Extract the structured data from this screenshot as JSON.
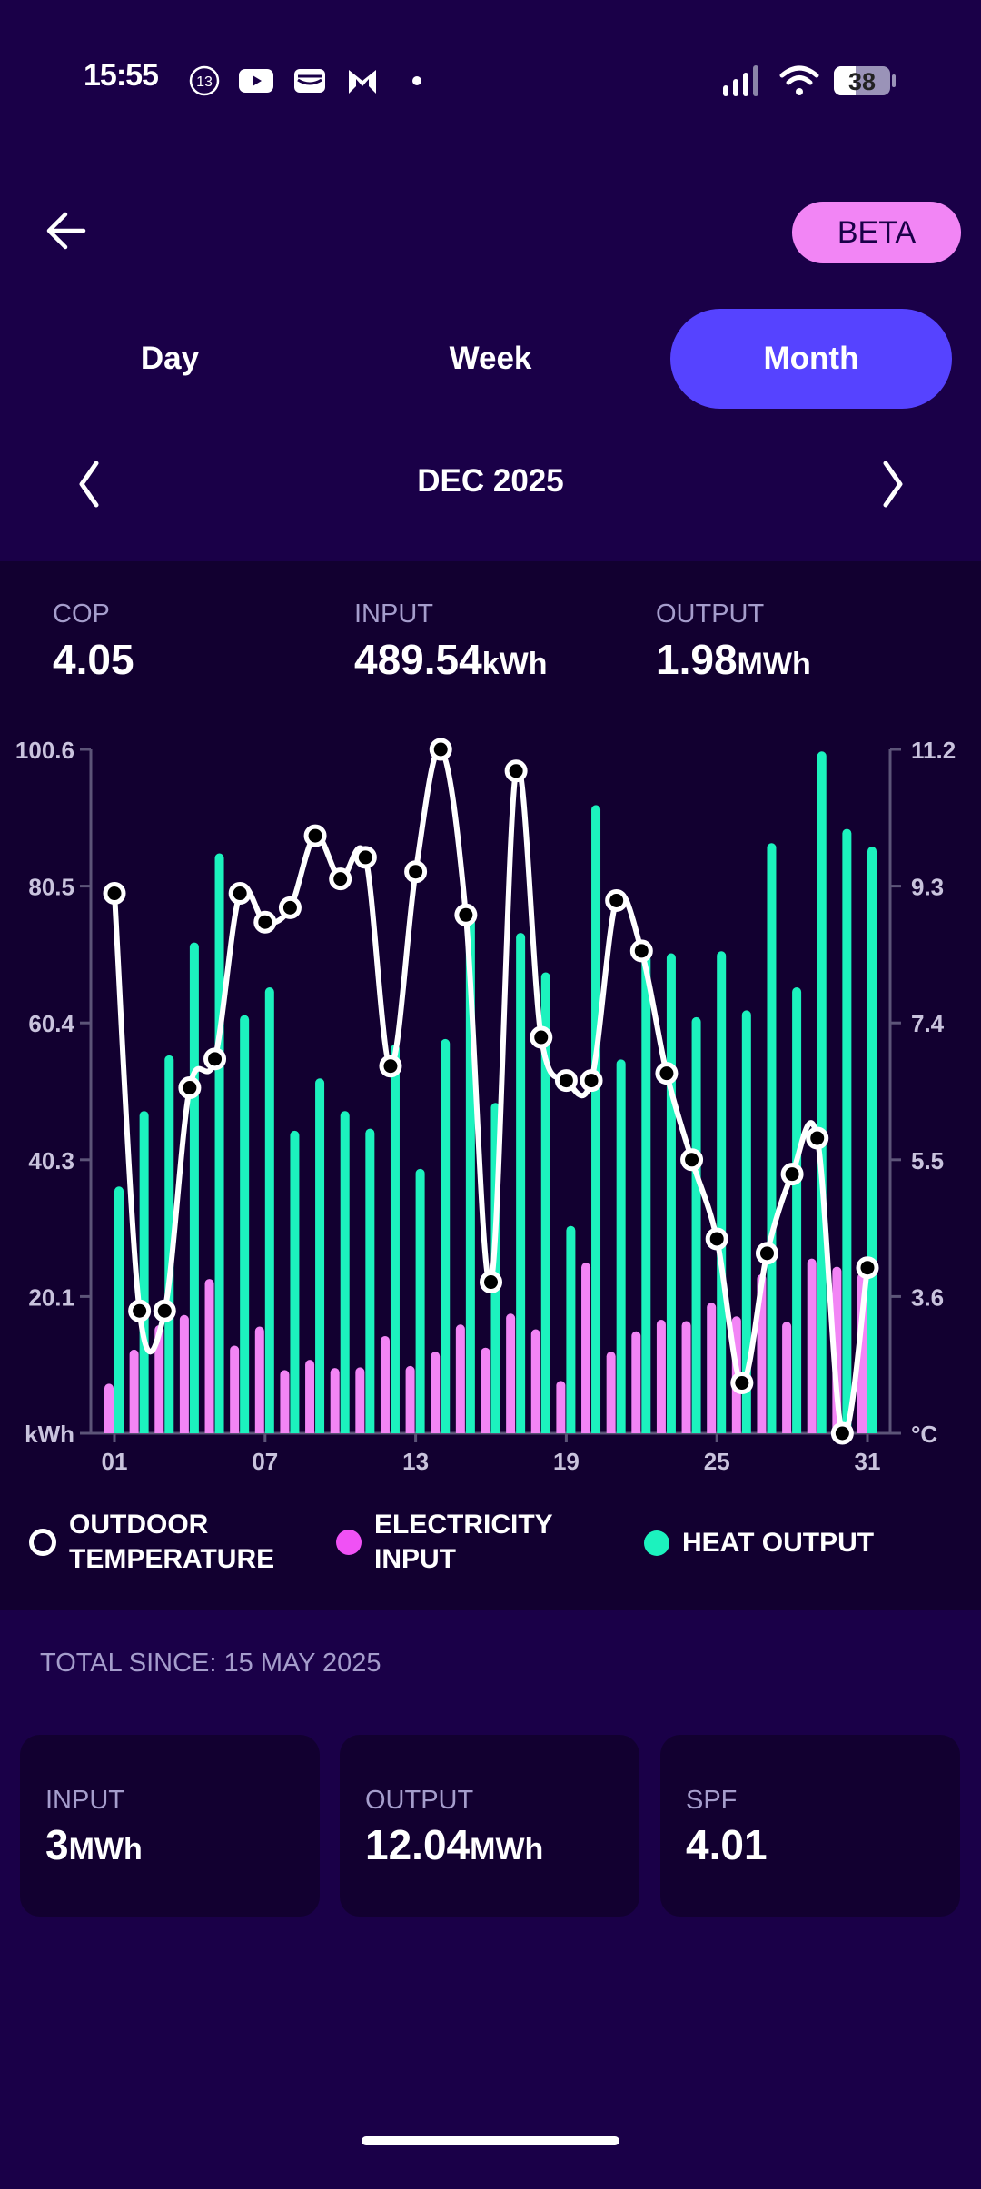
{
  "status_bar": {
    "time": "15:55",
    "notification_badge": "13",
    "battery": "38",
    "icons": [
      "notification-count-icon",
      "youtube-icon",
      "wallet-icon",
      "m-app-icon",
      "more-dot-icon",
      "signal-icon",
      "wifi-icon",
      "battery-icon"
    ]
  },
  "header": {
    "back_icon": "arrow-left-icon",
    "beta_label": "BETA"
  },
  "tabs": [
    {
      "label": "Day",
      "active": false
    },
    {
      "label": "Week",
      "active": false
    },
    {
      "label": "Month",
      "active": true
    }
  ],
  "period": {
    "label": "DEC 2025",
    "prev_icon": "chevron-left-icon",
    "next_icon": "chevron-right-icon"
  },
  "summary": {
    "cop": {
      "label": "COP",
      "value": "4.05",
      "unit": ""
    },
    "input": {
      "label": "INPUT",
      "value": "489.54",
      "unit": "kWh"
    },
    "output": {
      "label": "OUTPUT",
      "value": "1.98",
      "unit": "MWh"
    }
  },
  "colors": {
    "background": "#1a0048",
    "panel": "#120030",
    "accent": "#5643ff",
    "beta": "#f285f5",
    "electricity": "#f285f5",
    "heat": "#1cf2be",
    "temperature": "#ffffff"
  },
  "chart_data": {
    "type": "bar",
    "categories": [
      "01",
      "02",
      "03",
      "04",
      "05",
      "06",
      "07",
      "08",
      "09",
      "10",
      "11",
      "12",
      "13",
      "14",
      "15",
      "16",
      "17",
      "18",
      "19",
      "20",
      "21",
      "22",
      "23",
      "24",
      "25",
      "26",
      "27",
      "28",
      "29",
      "30",
      "31"
    ],
    "x_tick_labels": [
      "01",
      "07",
      "13",
      "19",
      "25",
      "31"
    ],
    "left_axis": {
      "unit_label": "kWh",
      "ylim": [
        0,
        100.6
      ],
      "ticks": [
        "100.6",
        "80.5",
        "60.4",
        "40.3",
        "20.1"
      ]
    },
    "right_axis": {
      "unit_label": "°C",
      "ylim": [
        1.7,
        11.2
      ],
      "ticks": [
        "11.2",
        "9.3",
        "7.4",
        "5.5",
        "3.6"
      ]
    },
    "grid": false,
    "legend_position": "bottom",
    "series": [
      {
        "name": "HEAT OUTPUT",
        "type": "bar",
        "axis": "left",
        "color": "#1cf2be",
        "values": [
          36.3,
          47.4,
          55.6,
          72.2,
          85.3,
          61.5,
          65.6,
          44.5,
          52.2,
          47.4,
          44.8,
          57.2,
          38.9,
          58.0,
          75.8,
          48.6,
          73.6,
          67.8,
          30.5,
          92.4,
          55.0,
          70.4,
          70.6,
          61.2,
          70.9,
          62.2,
          86.8,
          65.6,
          100.3,
          88.9,
          86.3
        ]
      },
      {
        "name": "ELECTRICITY INPUT",
        "type": "bar",
        "axis": "left",
        "color": "#f285f5",
        "values": [
          7.3,
          12.3,
          15.9,
          17.4,
          22.7,
          12.9,
          15.7,
          9.3,
          10.8,
          9.6,
          9.7,
          14.3,
          9.9,
          12.0,
          16.0,
          12.6,
          17.6,
          15.3,
          7.7,
          25.1,
          12.0,
          15.0,
          16.7,
          16.5,
          19.2,
          17.2,
          23.4,
          16.4,
          25.7,
          24.5,
          23.6
        ]
      },
      {
        "name": "OUTDOOR TEMPERATURE",
        "type": "line",
        "axis": "right",
        "color": "#ffffff",
        "values": [
          9.2,
          3.4,
          3.4,
          6.5,
          6.9,
          9.2,
          8.8,
          9.0,
          10.0,
          9.4,
          9.7,
          6.8,
          9.5,
          11.2,
          8.9,
          3.8,
          10.9,
          7.2,
          6.6,
          6.6,
          9.1,
          8.4,
          6.7,
          5.5,
          4.4,
          2.4,
          4.2,
          5.3,
          5.8,
          1.7,
          4.0
        ]
      }
    ]
  },
  "legend": [
    {
      "label_line1": "OUTDOOR",
      "label_line2": "TEMPERATURE"
    },
    {
      "label_line1": "ELECTRICITY",
      "label_line2": "INPUT"
    },
    {
      "label_line1": "HEAT OUTPUT",
      "label_line2": ""
    }
  ],
  "totals": {
    "since_label": "TOTAL SINCE: 15 MAY 2025",
    "cards": [
      {
        "label": "INPUT",
        "value": "3",
        "unit": "MWh"
      },
      {
        "label": "OUTPUT",
        "value": "12.04",
        "unit": "MWh"
      },
      {
        "label": "SPF",
        "value": "4.01",
        "unit": ""
      }
    ]
  }
}
